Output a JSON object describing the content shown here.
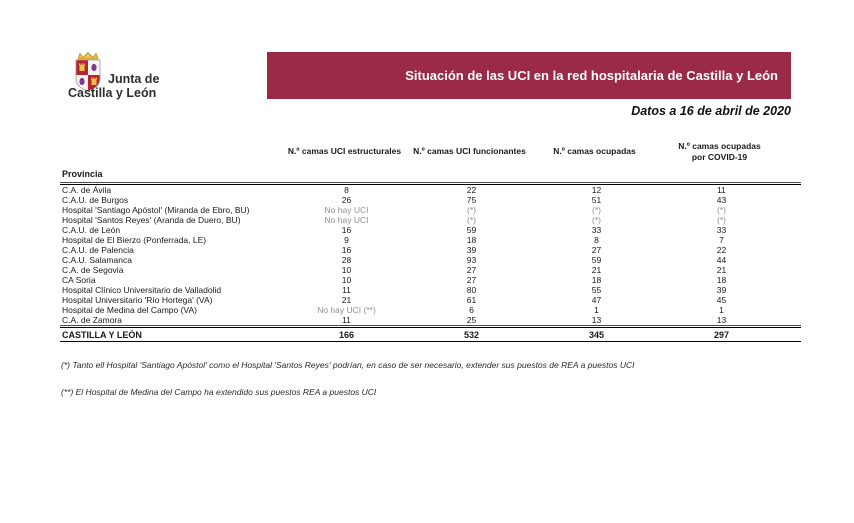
{
  "logo": {
    "line1": "Junta de",
    "line2": "Castilla y León"
  },
  "banner": {
    "title": "Situación de las UCI en la red hospitalaria de Castilla y León",
    "bg_color": "#9a2a45",
    "text_color": "#ffffff"
  },
  "date_line": "Datos a 16 de abril de 2020",
  "table": {
    "province_header": "Provincia",
    "columns": [
      "N.º camas UCI estructurales",
      "N.º camas UCI funcionantes",
      "N.º camas ocupadas",
      "N.º camas ocupadas\npor COVID-19"
    ],
    "rows": [
      {
        "provincia": "C.A. de Ávila",
        "values": [
          "8",
          "22",
          "12",
          "11"
        ]
      },
      {
        "provincia": "C.A.U. de Burgos",
        "values": [
          "26",
          "75",
          "51",
          "43"
        ]
      },
      {
        "provincia": "Hospital 'Santiago Apóstol' (Miranda de Ebro, BU)",
        "values": [
          "No hay UCI",
          "(*)",
          "(*)",
          "(*)"
        ]
      },
      {
        "provincia": "Hospital 'Santos Reyes' (Aranda de Duero, BU)",
        "values": [
          "No hay UCI",
          "(*)",
          "(*)",
          "(*)"
        ]
      },
      {
        "provincia": "C.A.U. de León",
        "values": [
          "16",
          "59",
          "33",
          "33"
        ]
      },
      {
        "provincia": "Hospital de El Bierzo (Ponferrada, LE)",
        "values": [
          "9",
          "18",
          "8",
          "7"
        ]
      },
      {
        "provincia": "C.A.U. de Palencia",
        "values": [
          "16",
          "39",
          "27",
          "22"
        ]
      },
      {
        "provincia": "C.A.U. Salamanca",
        "values": [
          "28",
          "93",
          "59",
          "44"
        ]
      },
      {
        "provincia": "C.A. de Segovia",
        "values": [
          "10",
          "27",
          "21",
          "21"
        ]
      },
      {
        "provincia": "CA Soria",
        "values": [
          "10",
          "27",
          "18",
          "18"
        ]
      },
      {
        "provincia": "Hospital Clínico Universitario de Valladolid",
        "values": [
          "11",
          "80",
          "55",
          "39"
        ]
      },
      {
        "provincia": "Hospital Universitario 'Río Hortega' (VA)",
        "values": [
          "21",
          "61",
          "47",
          "45"
        ]
      },
      {
        "provincia": "Hospital de Medina del Campo (VA)",
        "values": [
          "No hay UCI (**)",
          "6",
          "1",
          "1"
        ]
      },
      {
        "provincia": "C.A. de Zamora",
        "values": [
          "11",
          "25",
          "13",
          "13"
        ]
      }
    ],
    "total": {
      "provincia": "CASTILLA Y LEÓN",
      "values": [
        "166",
        "532",
        "345",
        "297"
      ]
    }
  },
  "footnotes": [
    "(*) Tanto ell Hospital 'Santiago Apóstol' como el Hospital 'Santos Reyes' podrían, en caso de ser necesario, extender sus puestos de REA a puestos UCI",
    "(**) El Hospital de Medina del Campo ha extendido sus puestos REA a puestos UCI"
  ]
}
